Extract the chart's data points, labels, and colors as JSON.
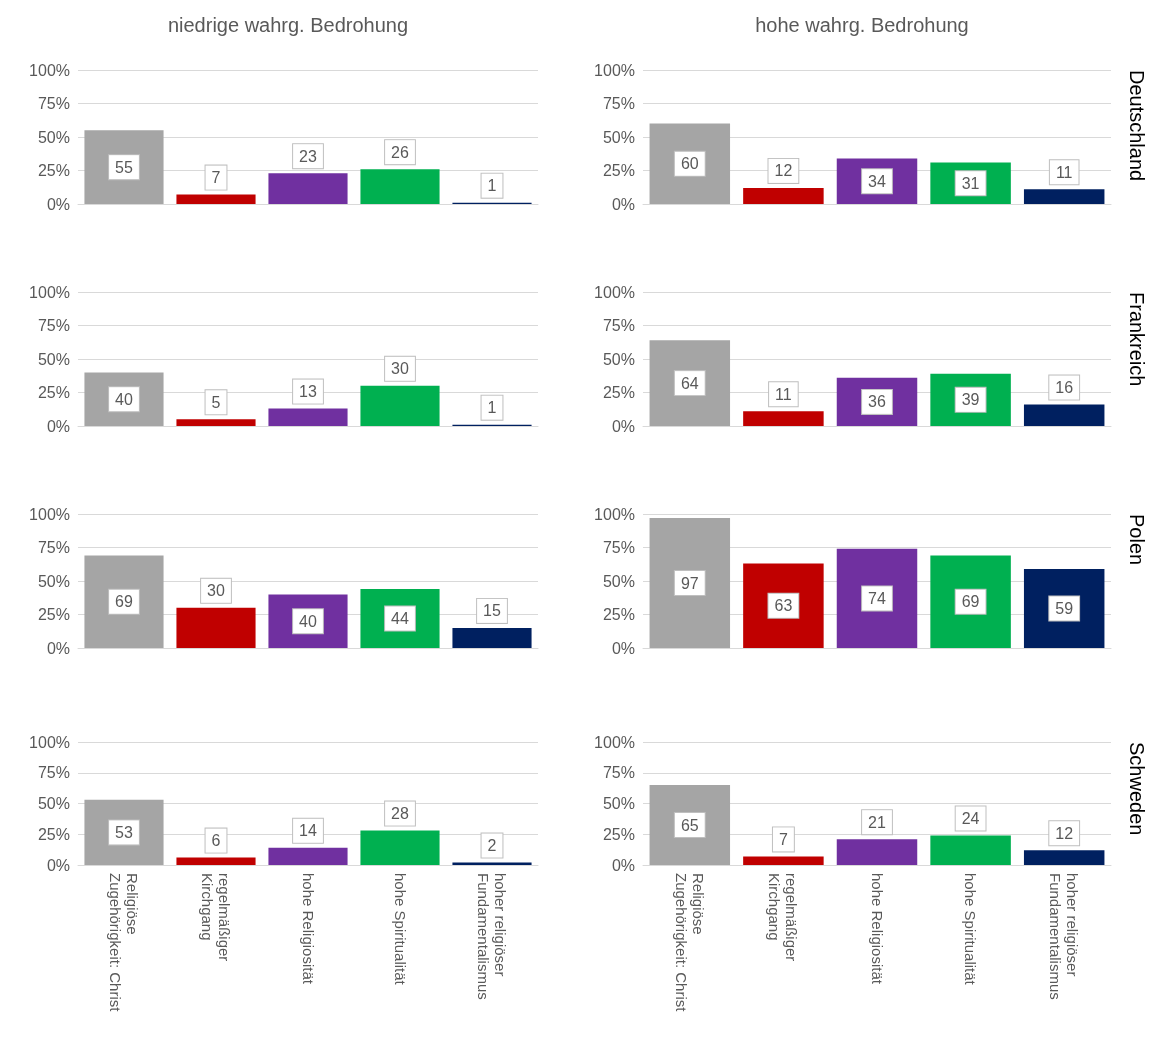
{
  "chart_data": [
    {
      "type": "bar",
      "title": "niedrige wahrg. Bedrohung",
      "categories": [
        "Religiöse Zugehörigkeit: Christ",
        "regelmäßiger Kirchgang",
        "hohe Religiosität",
        "hohe Spiritualität",
        "hoher religiöser Fundamentalismus"
      ],
      "values": [
        55,
        7,
        23,
        26,
        1
      ],
      "colors": [
        "#a5a5a5",
        "#c00000",
        "#7030a0",
        "#00b050",
        "#002060"
      ],
      "ylim": [
        0,
        100
      ],
      "yticks": [
        {
          "value": 0,
          "label": "0%"
        },
        {
          "value": 25,
          "label": "25%"
        },
        {
          "value": 50,
          "label": "50%"
        },
        {
          "value": 75,
          "label": "75%"
        },
        {
          "value": 100,
          "label": "100%"
        }
      ],
      "data_labels": true,
      "grid": "y",
      "tick_labels": "y"
    },
    {
      "type": "bar",
      "title": "hohe wahrg. Bedrohung",
      "y2label": "Deutschland",
      "categories": [
        "Religiöse Zugehörigkeit: Christ",
        "regelmäßiger Kirchgang",
        "hohe Religiosität",
        "hohe Spiritualität",
        "hoher religiöser Fundamentalismus"
      ],
      "values": [
        60,
        12,
        34,
        31,
        11
      ],
      "colors": [
        "#a5a5a5",
        "#c00000",
        "#7030a0",
        "#00b050",
        "#002060"
      ],
      "ylim": [
        0,
        100
      ],
      "yticks": [
        {
          "value": 0,
          "label": "0%"
        },
        {
          "value": 25,
          "label": "25%"
        },
        {
          "value": 50,
          "label": "50%"
        },
        {
          "value": 75,
          "label": "75%"
        },
        {
          "value": 100,
          "label": "100%"
        }
      ],
      "data_labels": true,
      "grid": "y",
      "tick_labels": "y"
    },
    {
      "type": "bar",
      "categories": [
        "Religiöse Zugehörigkeit: Christ",
        "regelmäßiger Kirchgang",
        "hohe Religiosität",
        "hohe Spiritualität",
        "hoher religiöser Fundamentalismus"
      ],
      "values": [
        40,
        5,
        13,
        30,
        1
      ],
      "colors": [
        "#a5a5a5",
        "#c00000",
        "#7030a0",
        "#00b050",
        "#002060"
      ],
      "ylim": [
        0,
        100
      ],
      "yticks": [
        {
          "value": 0,
          "label": "0%"
        },
        {
          "value": 25,
          "label": "25%"
        },
        {
          "value": 50,
          "label": "50%"
        },
        {
          "value": 75,
          "label": "75%"
        },
        {
          "value": 100,
          "label": "100%"
        }
      ],
      "data_labels": true,
      "grid": "y",
      "tick_labels": "y"
    },
    {
      "type": "bar",
      "y2label": "Frankreich",
      "categories": [
        "Religiöse Zugehörigkeit: Christ",
        "regelmäßiger Kirchgang",
        "hohe Religiosität",
        "hohe Spiritualität",
        "hoher religiöser Fundamentalismus"
      ],
      "values": [
        64,
        11,
        36,
        39,
        16
      ],
      "colors": [
        "#a5a5a5",
        "#c00000",
        "#7030a0",
        "#00b050",
        "#002060"
      ],
      "ylim": [
        0,
        100
      ],
      "yticks": [
        {
          "value": 0,
          "label": "0%"
        },
        {
          "value": 25,
          "label": "25%"
        },
        {
          "value": 50,
          "label": "50%"
        },
        {
          "value": 75,
          "label": "75%"
        },
        {
          "value": 100,
          "label": "100%"
        }
      ],
      "data_labels": true,
      "grid": "y",
      "tick_labels": "y"
    },
    {
      "type": "bar",
      "categories": [
        "Religiöse Zugehörigkeit: Christ",
        "regelmäßiger Kirchgang",
        "hohe Religiosität",
        "hohe Spiritualität",
        "hoher religiöser Fundamentalismus"
      ],
      "values": [
        69,
        30,
        40,
        44,
        15
      ],
      "colors": [
        "#a5a5a5",
        "#c00000",
        "#7030a0",
        "#00b050",
        "#002060"
      ],
      "ylim": [
        0,
        100
      ],
      "yticks": [
        {
          "value": 0,
          "label": "0%"
        },
        {
          "value": 25,
          "label": "25%"
        },
        {
          "value": 50,
          "label": "50%"
        },
        {
          "value": 75,
          "label": "75%"
        },
        {
          "value": 100,
          "label": "100%"
        }
      ],
      "data_labels": true,
      "grid": "y",
      "tick_labels": "y"
    },
    {
      "type": "bar",
      "y2label": "Polen",
      "categories": [
        "Religiöse Zugehörigkeit: Christ",
        "regelmäßiger Kirchgang",
        "hohe Religiosität",
        "hohe Spiritualität",
        "hoher religiöser Fundamentalismus"
      ],
      "values": [
        97,
        63,
        74,
        69,
        59
      ],
      "colors": [
        "#a5a5a5",
        "#c00000",
        "#7030a0",
        "#00b050",
        "#002060"
      ],
      "ylim": [
        0,
        100
      ],
      "yticks": [
        {
          "value": 0,
          "label": "0%"
        },
        {
          "value": 25,
          "label": "25%"
        },
        {
          "value": 50,
          "label": "50%"
        },
        {
          "value": 75,
          "label": "75%"
        },
        {
          "value": 100,
          "label": "100%"
        }
      ],
      "data_labels": true,
      "grid": "y",
      "tick_labels": "y"
    },
    {
      "type": "bar",
      "categories": [
        "Religiöse Zugehörigkeit: Christ",
        "regelmäßiger Kirchgang",
        "hohe Religiosität",
        "hohe Spiritualität",
        "hoher religiöser Fundamentalismus"
      ],
      "values": [
        53,
        6,
        14,
        28,
        2
      ],
      "colors": [
        "#a5a5a5",
        "#c00000",
        "#7030a0",
        "#00b050",
        "#002060"
      ],
      "ylim": [
        0,
        100
      ],
      "yticks": [
        {
          "value": 0,
          "label": "0%"
        },
        {
          "value": 25,
          "label": "25%"
        },
        {
          "value": 50,
          "label": "50%"
        },
        {
          "value": 75,
          "label": "75%"
        },
        {
          "value": 100,
          "label": "100%"
        }
      ],
      "data_labels": true,
      "grid": "y"
    },
    {
      "type": "bar",
      "y2label": "Schweden",
      "categories": [
        "Religiöse Zugehörigkeit: Christ",
        "regelmäßiger Kirchgang",
        "hohe Religiosität",
        "hohe Spiritualität",
        "hoher religiöser Fundamentalismus"
      ],
      "values": [
        65,
        7,
        21,
        24,
        12
      ],
      "colors": [
        "#a5a5a5",
        "#c00000",
        "#7030a0",
        "#00b050",
        "#002060"
      ],
      "ylim": [
        0,
        100
      ],
      "yticks": [
        {
          "value": 0,
          "label": "0%"
        },
        {
          "value": 25,
          "label": "25%"
        },
        {
          "value": 50,
          "label": "50%"
        },
        {
          "value": 75,
          "label": "75%"
        },
        {
          "value": 100,
          "label": "100%"
        }
      ],
      "data_labels": true,
      "grid": "y"
    }
  ]
}
